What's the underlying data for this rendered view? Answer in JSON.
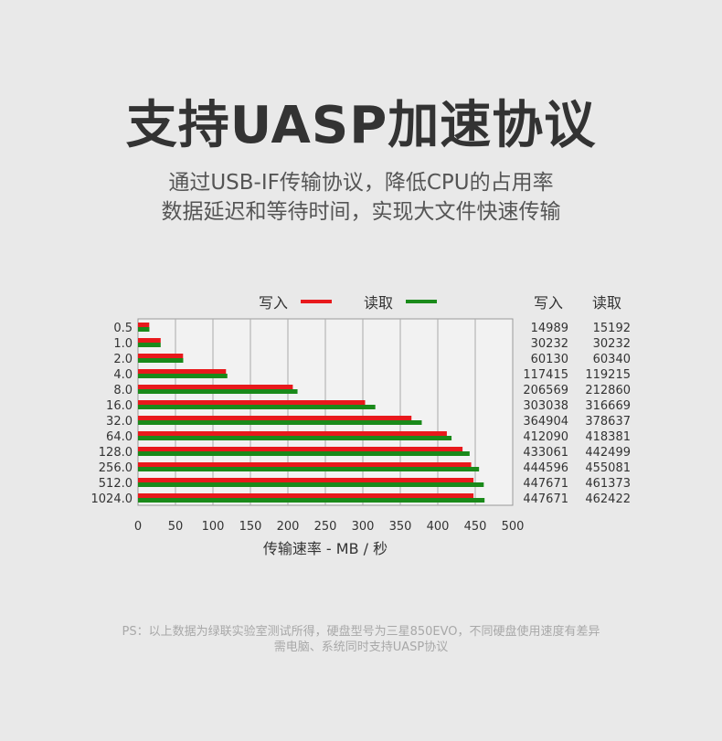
{
  "header": {
    "title": "支持UASP加速协议",
    "subtitle_line1": "通过USB-IF传输协议，降低CPU的占用率",
    "subtitle_line2": "数据延迟和等待时间，实现大文件快速传输"
  },
  "chart_data": {
    "type": "bar",
    "orientation": "horizontal",
    "categories": [
      "0.5",
      "1.0",
      "2.0",
      "4.0",
      "8.0",
      "16.0",
      "32.0",
      "64.0",
      "128.0",
      "256.0",
      "512.0",
      "1024.0"
    ],
    "series": [
      {
        "name": "写入",
        "color": "#e8191c",
        "values": [
          14.989,
          30.232,
          60.13,
          117.415,
          206.569,
          303.038,
          364.904,
          412.09,
          433.061,
          444.596,
          447.671,
          447.671
        ]
      },
      {
        "name": "读取",
        "color": "#1a8a1a",
        "values": [
          15.192,
          30.232,
          60.34,
          119.215,
          212.86,
          316.669,
          378.637,
          418.381,
          442.499,
          455.081,
          461.373,
          462.422
        ]
      }
    ],
    "table": {
      "headers": [
        "写入",
        "读取"
      ],
      "rows": [
        [
          "14989",
          "15192"
        ],
        [
          "30232",
          "30232"
        ],
        [
          "60130",
          "60340"
        ],
        [
          "117415",
          "119215"
        ],
        [
          "206569",
          "212860"
        ],
        [
          "303038",
          "316669"
        ],
        [
          "364904",
          "378637"
        ],
        [
          "412090",
          "418381"
        ],
        [
          "433061",
          "442499"
        ],
        [
          "444596",
          "455081"
        ],
        [
          "447671",
          "461373"
        ],
        [
          "447671",
          "462422"
        ]
      ]
    },
    "x_ticks": [
      "0",
      "50",
      "100",
      "150",
      "200",
      "250",
      "300",
      "350",
      "400",
      "450",
      "500"
    ],
    "xlim": [
      0,
      500
    ],
    "xlabel": "传输速率 - MB / 秒",
    "grid": true,
    "legend_position": "top"
  },
  "footnote": {
    "line1": "PS：以上数据为绿联实验室测试所得，硬盘型号为三星850EVO，不同硬盘使用速度有差异",
    "line2": "需电脑、系统同时支持UASP协议"
  }
}
